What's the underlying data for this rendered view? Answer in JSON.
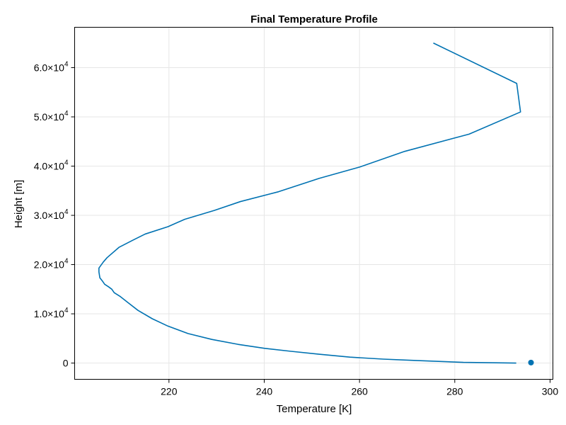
{
  "chart_data": {
    "type": "line",
    "title": "Final Temperature Profile",
    "xlabel": "Temperature [K]",
    "ylabel": "Height [m]",
    "xlim": [
      200.2,
      300.6
    ],
    "ylim": [
      -3300,
      68200
    ],
    "grid": true,
    "x_ticks": [
      {
        "value": 220,
        "label": "220"
      },
      {
        "value": 240,
        "label": "240"
      },
      {
        "value": 260,
        "label": "260"
      },
      {
        "value": 280,
        "label": "280"
      },
      {
        "value": 300,
        "label": "300"
      }
    ],
    "y_ticks": [
      {
        "value": 0,
        "mantissa": "0",
        "exponent": ""
      },
      {
        "value": 10000,
        "mantissa": "1.0×10",
        "exponent": "4"
      },
      {
        "value": 20000,
        "mantissa": "2.0×10",
        "exponent": "4"
      },
      {
        "value": 30000,
        "mantissa": "3.0×10",
        "exponent": "4"
      },
      {
        "value": 40000,
        "mantissa": "4.0×10",
        "exponent": "4"
      },
      {
        "value": 50000,
        "mantissa": "5.0×10",
        "exponent": "4"
      },
      {
        "value": 60000,
        "mantissa": "6.0×10",
        "exponent": "4"
      }
    ],
    "series": [
      {
        "kind": "line",
        "color": "#0072b2",
        "points": [
          [
            292.9,
            0
          ],
          [
            281.8,
            150
          ],
          [
            272.3,
            500
          ],
          [
            265.0,
            800
          ],
          [
            258.0,
            1200
          ],
          [
            251.5,
            1800
          ],
          [
            245.5,
            2400
          ],
          [
            240.0,
            3000
          ],
          [
            234.5,
            3800
          ],
          [
            229.0,
            4800
          ],
          [
            224.0,
            6000
          ],
          [
            219.8,
            7500
          ],
          [
            216.5,
            9000
          ],
          [
            213.5,
            10700
          ],
          [
            211.5,
            12200
          ],
          [
            209.8,
            13500
          ],
          [
            208.5,
            14300
          ],
          [
            208.0,
            15000
          ],
          [
            207.3,
            15500
          ],
          [
            206.5,
            16000
          ],
          [
            206.0,
            16700
          ],
          [
            205.5,
            17300
          ],
          [
            205.3,
            18500
          ],
          [
            205.3,
            19300
          ],
          [
            206.2,
            20500
          ],
          [
            207.0,
            21400
          ],
          [
            209.5,
            23500
          ],
          [
            212.5,
            25000
          ],
          [
            215.0,
            26200
          ],
          [
            219.8,
            27700
          ],
          [
            223.3,
            29200
          ],
          [
            229.5,
            31000
          ],
          [
            235.0,
            32800
          ],
          [
            243.0,
            34800
          ],
          [
            251.5,
            37500
          ],
          [
            260.0,
            39800
          ],
          [
            269.5,
            43000
          ],
          [
            283.0,
            46500
          ],
          [
            293.8,
            51000
          ],
          [
            293.0,
            56800
          ],
          [
            275.5,
            65000
          ]
        ]
      },
      {
        "kind": "scatter",
        "color": "#0072b2",
        "points": [
          [
            296.0,
            100
          ]
        ]
      }
    ]
  }
}
